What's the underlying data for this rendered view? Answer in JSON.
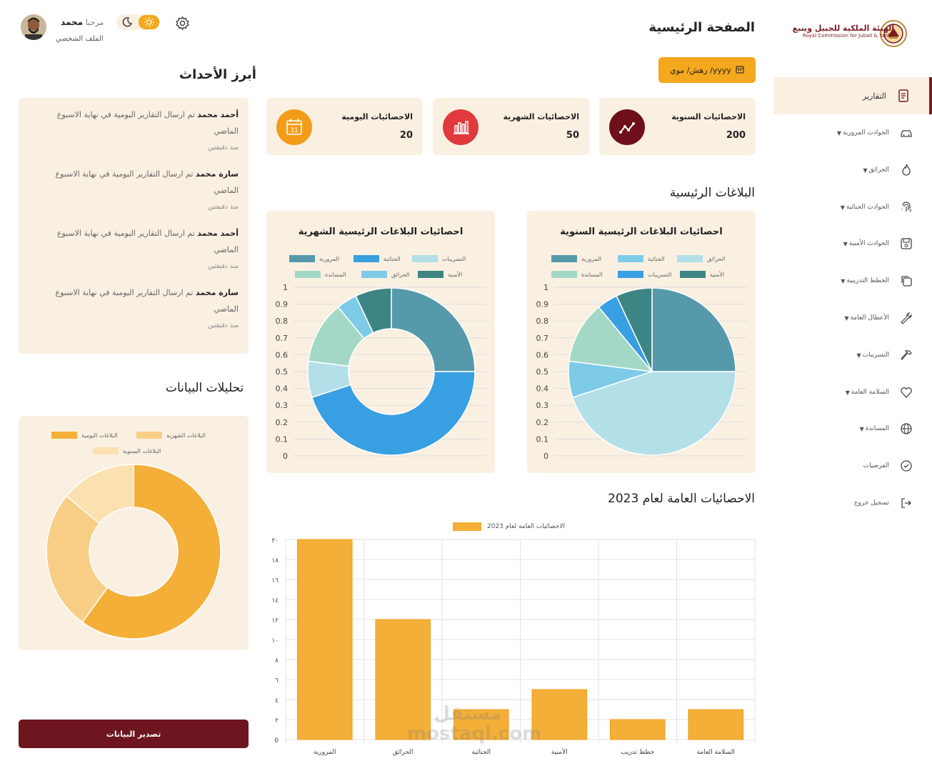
{
  "brand": {
    "name_ar": "الهيئة الملكية للجبيل وينبع",
    "name_en": "Royal Commission for Jubail & Yanbu"
  },
  "page": {
    "title": "الصفحة الرئيسية"
  },
  "user": {
    "greeting": "مرحبا",
    "name": "محمد",
    "profile_link": "الملف الشخصي"
  },
  "date_picker": {
    "placeholder": "yyyy/ رهش/ موي"
  },
  "sidebar": {
    "items": [
      {
        "label": "التقارير",
        "icon": "report-icon",
        "active": true,
        "caret": false
      },
      {
        "label": "الحوادث المرورية",
        "icon": "car-icon",
        "caret": true
      },
      {
        "label": "الحرائق",
        "icon": "fire-icon",
        "caret": true
      },
      {
        "label": "الحوادث الجنائية",
        "icon": "fingerprint-icon",
        "caret": true
      },
      {
        "label": "الحوادث الأمنية",
        "icon": "shield-save-icon",
        "caret": true
      },
      {
        "label": "الخطط التدريبية",
        "icon": "copy-icon",
        "caret": true
      },
      {
        "label": "الأعطال العامة",
        "icon": "wrench-icon",
        "caret": true
      },
      {
        "label": "التسريبات",
        "icon": "hammer-icon",
        "caret": true
      },
      {
        "label": "السلامة العامة",
        "icon": "heart-icon",
        "caret": true
      },
      {
        "label": "المساندة",
        "icon": "globe-icon",
        "caret": true
      },
      {
        "label": "الفرضيات",
        "icon": "check-circle-icon",
        "caret": false
      },
      {
        "label": "تسجيل خروج",
        "icon": "logout-icon",
        "caret": false
      }
    ]
  },
  "stats": [
    {
      "label": "الاحصائيات السنوية",
      "value": "200",
      "icon": "trend-icon",
      "color": "#6e0f1a"
    },
    {
      "label": "الاحصائيات الشهرية",
      "value": "50",
      "icon": "bar-chart-icon",
      "color": "#e03a3e"
    },
    {
      "label": "الاحصائيات اليومية",
      "value": "20",
      "icon": "calendar-icon",
      "color": "#f39c1a"
    }
  ],
  "sections": {
    "main_reports": "البلاغات الرئيسية",
    "general_stats": "الاحصائيات العامة لعام 2023",
    "highlights": "أبرز الأحداث",
    "analytics": "تحليلات البيانات"
  },
  "activities": [
    {
      "name": "أحمد محمد",
      "text": "تم ارسال التقارير اليومية في نهاية الاسبوع الماضي",
      "time": "منذ دقيقتين"
    },
    {
      "name": "سارة محمد",
      "text": "تم ارسال التقارير اليومية في نهاية الاسبوع الماضي",
      "time": "منذ دقيقتين"
    },
    {
      "name": "أحمد محمد",
      "text": "تم ارسال التقارير اليومية في نهاية الاسبوع الماضي",
      "time": "منذ دقيقتين"
    },
    {
      "name": "سارة محمد",
      "text": "تم ارسال التقارير اليومية في نهاية الاسبوع الماضي",
      "time": "منذ دقيقتين"
    }
  ],
  "export_button": "تصدير البيانات",
  "watermark": "مستقل mostaql.com",
  "chart_data": [
    {
      "type": "pie",
      "title": "احصائيات البلاغات الرئيسية السنوية",
      "legend": [
        "المرورية",
        "الجنائية",
        "الحرائق",
        "المساندة",
        "التسريبات",
        "الأمنية"
      ],
      "colors": [
        "#5599ab",
        "#7ecbe8",
        "#b3dfe8",
        "#a4d8c6",
        "#389fe3",
        "#3d8585"
      ],
      "slices": [
        {
          "label": "المرورية",
          "value": 25
        },
        {
          "label": "الحرائق",
          "value": 45
        },
        {
          "label": "الجنائية",
          "value": 7
        },
        {
          "label": "المساندة",
          "value": 12
        },
        {
          "label": "التسريبات",
          "value": 4
        },
        {
          "label": "الأمنية",
          "value": 7
        }
      ],
      "yticks": [
        "1",
        "0.9",
        "0.8",
        "0.7",
        "0.6",
        "0.5",
        "0.4",
        "0.3",
        "0.2",
        "0.1",
        "0"
      ]
    },
    {
      "type": "pie",
      "title": "احصائيات البلاغات الرئيسية الشهرية",
      "legend": [
        "المرورية",
        "الجنائية",
        "التسريبات",
        "المساندة",
        "الحرائق",
        "الأمنية"
      ],
      "colors": [
        "#5599ab",
        "#389fe3",
        "#b3dfe8",
        "#a4d8c6",
        "#7ecbe8",
        "#3d8585"
      ],
      "slices": [
        {
          "label": "المرورية",
          "value": 25
        },
        {
          "label": "الجنائية",
          "value": 45
        },
        {
          "label": "التسريبات",
          "value": 7
        },
        {
          "label": "المساندة",
          "value": 12
        },
        {
          "label": "الحرائق",
          "value": 4
        },
        {
          "label": "الأمنية",
          "value": 7
        }
      ],
      "yticks": [
        "1",
        "0.9",
        "0.8",
        "0.7",
        "0.6",
        "0.5",
        "0.4",
        "0.3",
        "0.2",
        "0.1",
        "0"
      ]
    },
    {
      "type": "bar",
      "title": "الاحصائيات العامة لعام 2023",
      "series_name": "الاحصائيات العامة لعام 2023",
      "color": "#f4af38",
      "categories": [
        "المرورية",
        "الحرائق",
        "الجنائية",
        "الأمنية",
        "خطط تدريب",
        "السلامة العامة"
      ],
      "values": [
        20,
        12,
        3,
        5,
        2,
        3
      ],
      "ylim": [
        0,
        20
      ],
      "yticks": [
        "٢٠",
        "١٨",
        "١٦",
        "١٤",
        "١٢",
        "١٠",
        "٨",
        "٦",
        "٤",
        "٢",
        "0"
      ]
    },
    {
      "type": "pie",
      "title": "تحليلات البيانات",
      "legend": [
        "البلاغات اليومية",
        "البلاغات الشهرية",
        "البلاغات السنوية"
      ],
      "colors": [
        "#f4af38",
        "#f8ce87",
        "#fbe0b0"
      ],
      "slices": [
        {
          "label": "البلاغات اليومية",
          "value": 60
        },
        {
          "label": "البلاغات الشهرية",
          "value": 26
        },
        {
          "label": "البلاغات السنوية",
          "value": 14
        }
      ]
    }
  ]
}
